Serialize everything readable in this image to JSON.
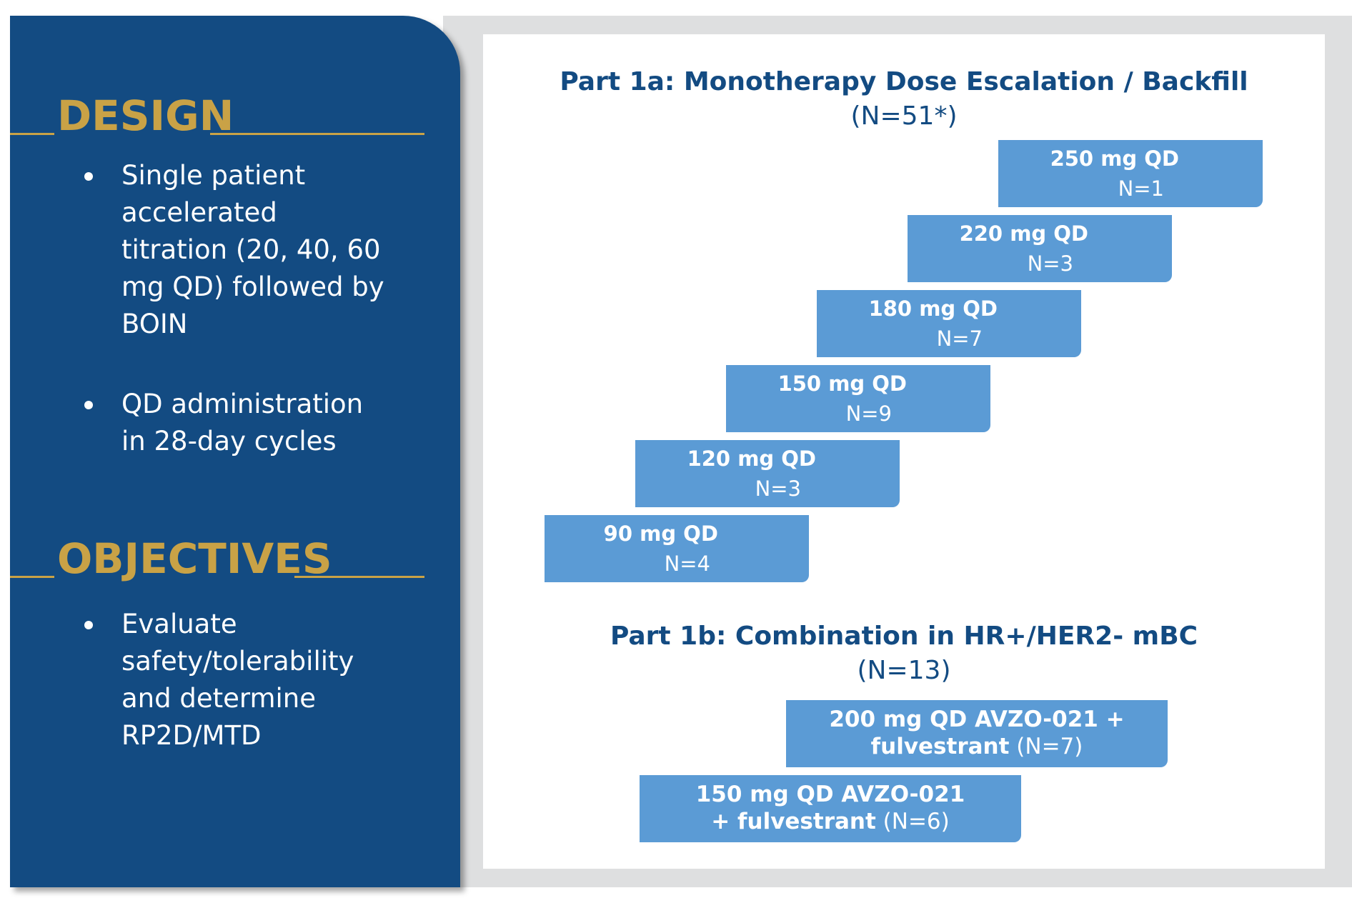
{
  "left_panel": {
    "design": {
      "heading": "DESIGN",
      "bullets": [
        "Single patient accelerated titration (20, 40, 60 mg QD) followed by BOIN",
        "QD administration in 28-day cycles"
      ]
    },
    "objectives": {
      "heading": "OBJECTIVES",
      "bullets": [
        "Evaluate safety/tolerability and determine RP2D/MTD"
      ]
    }
  },
  "part1a": {
    "title": "Part 1a: Monotherapy Dose Escalation / Backfill",
    "n": "(N=51*)",
    "steps": [
      {
        "dose": "250 mg QD",
        "n": "N=1"
      },
      {
        "dose": "220 mg QD",
        "n": "N=3"
      },
      {
        "dose": "180 mg QD",
        "n": "N=7"
      },
      {
        "dose": "150 mg QD",
        "n": "N=9"
      },
      {
        "dose": "120 mg QD",
        "n": "N=3"
      },
      {
        "dose": "90 mg QD",
        "n": "N=4"
      }
    ]
  },
  "part1b": {
    "title": "Part 1b: Combination in HR+/HER2- mBC",
    "n": "(N=13)",
    "arms": [
      {
        "line1": "200 mg QD AVZO-021 +",
        "line2_bold": "fulvestrant",
        "line2_n": "(N=7)"
      },
      {
        "line1": "150 mg QD AVZO-021",
        "line2_bold": "+ fulvestrant",
        "line2_n": "(N=6)"
      }
    ]
  },
  "colors": {
    "panel": "#134b82",
    "accent_gold": "#c9a246",
    "box_blue": "#5b9bd5",
    "background_gray": "#dedfe0"
  }
}
